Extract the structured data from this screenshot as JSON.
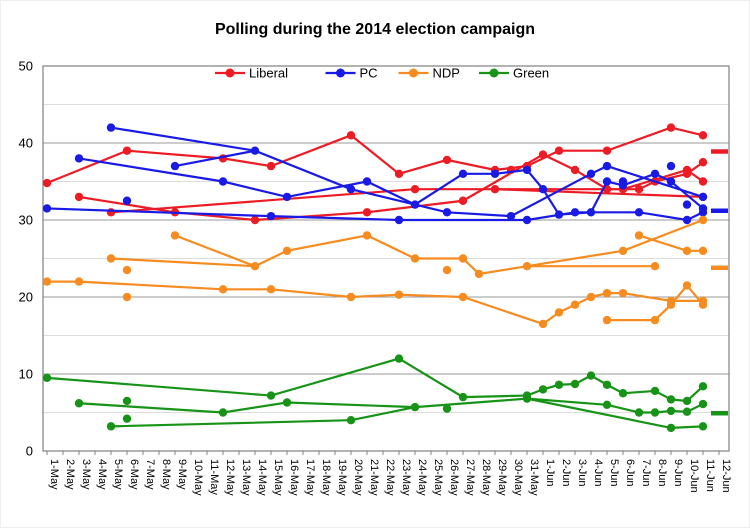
{
  "title": "Polling during the 2014 election campaign",
  "chart_data": {
    "type": "line",
    "title": "Polling during the 2014 election campaign",
    "xlabel": "",
    "ylabel": "",
    "ylim": [
      0,
      50
    ],
    "y_ticks": [
      0,
      10,
      20,
      30,
      40,
      50
    ],
    "grid": "on",
    "legend_position": "top-center",
    "x_labels": [
      "1-May",
      "2-May",
      "3-May",
      "4-May",
      "5-May",
      "6-May",
      "7-May",
      "8-May",
      "9-May",
      "10-May",
      "11-May",
      "12-May",
      "13-May",
      "14-May",
      "15-May",
      "16-May",
      "17-May",
      "18-May",
      "19-May",
      "20-May",
      "21-May",
      "22-May",
      "23-May",
      "24-May",
      "25-May",
      "26-May",
      "27-May",
      "28-May",
      "29-May",
      "30-May",
      "31-May",
      "1-Jun",
      "2-Jun",
      "3-Jun",
      "4-Jun",
      "5-Jun",
      "6-Jun",
      "7-Jun",
      "8-Jun",
      "9-Jun",
      "10-Jun",
      "11-Jun",
      "12-Jun"
    ],
    "legend": [
      "Liberal",
      "PC",
      "NDP",
      "Green"
    ],
    "series": [
      {
        "name": "Liberal",
        "color": "#ED1B24",
        "points": [
          [
            1,
            34.8
          ],
          [
            3,
            33
          ],
          [
            5,
            31
          ],
          [
            6,
            39
          ],
          [
            9,
            31
          ],
          [
            12,
            38
          ],
          [
            14,
            30
          ],
          [
            15,
            37
          ],
          [
            20,
            41
          ],
          [
            21,
            31
          ],
          [
            23,
            36
          ],
          [
            24,
            34
          ],
          [
            26,
            37.8
          ],
          [
            27,
            32.5
          ],
          [
            29,
            36.5
          ],
          [
            29,
            34
          ],
          [
            30,
            36.5
          ],
          [
            31,
            37
          ],
          [
            32,
            38.5
          ],
          [
            33,
            39
          ],
          [
            34,
            36.5
          ],
          [
            36,
            39
          ],
          [
            36,
            34
          ],
          [
            37,
            34
          ],
          [
            38,
            34
          ],
          [
            39,
            35
          ],
          [
            40,
            42
          ],
          [
            41,
            36.5
          ],
          [
            41,
            36
          ],
          [
            42,
            41
          ],
          [
            42,
            37.5
          ],
          [
            42,
            35
          ],
          [
            42,
            33
          ]
        ],
        "lines": [
          [
            [
              1,
              34.8
            ],
            [
              6,
              39
            ],
            [
              12,
              38
            ],
            [
              15,
              37
            ],
            [
              20,
              41
            ],
            [
              23,
              36
            ],
            [
              26,
              37.8
            ],
            [
              29,
              36.5
            ],
            [
              31,
              37
            ],
            [
              33,
              39
            ],
            [
              36,
              39
            ],
            [
              40,
              42
            ],
            [
              42,
              41
            ]
          ],
          [
            [
              3,
              33
            ],
            [
              9,
              31
            ],
            [
              14,
              30
            ],
            [
              21,
              31
            ],
            [
              27,
              32.5
            ],
            [
              32,
              38.5
            ],
            [
              34,
              36.5
            ],
            [
              36,
              34
            ],
            [
              38,
              34
            ],
            [
              39,
              35
            ],
            [
              41,
              36
            ],
            [
              42,
              37.5
            ]
          ],
          [
            [
              5,
              31
            ],
            [
              24,
              34
            ],
            [
              29,
              34
            ],
            [
              37,
              34
            ],
            [
              41,
              36.5
            ],
            [
              42,
              35
            ]
          ],
          [
            [
              29,
              34
            ],
            [
              42,
              33
            ]
          ]
        ],
        "result": 38.9
      },
      {
        "name": "PC",
        "color": "#1A1AE6",
        "points": [
          [
            1,
            31.5
          ],
          [
            3,
            38
          ],
          [
            5,
            42
          ],
          [
            6,
            32.5
          ],
          [
            9,
            37
          ],
          [
            12,
            35
          ],
          [
            14,
            39
          ],
          [
            15,
            30.5
          ],
          [
            16,
            33
          ],
          [
            20,
            34
          ],
          [
            21,
            35
          ],
          [
            23,
            30
          ],
          [
            24,
            32
          ],
          [
            26,
            31
          ],
          [
            27,
            36
          ],
          [
            29,
            36
          ],
          [
            30,
            30.5
          ],
          [
            31,
            36.5
          ],
          [
            31,
            30
          ],
          [
            32,
            34
          ],
          [
            33,
            30.7
          ],
          [
            34,
            31
          ],
          [
            35,
            36
          ],
          [
            35,
            31
          ],
          [
            36,
            37
          ],
          [
            36,
            35
          ],
          [
            37,
            35
          ],
          [
            37,
            34.5
          ],
          [
            38,
            31
          ],
          [
            39,
            36
          ],
          [
            40,
            37
          ],
          [
            40,
            35
          ],
          [
            41,
            32
          ],
          [
            41,
            30
          ],
          [
            42,
            33
          ],
          [
            42,
            31.5
          ],
          [
            42,
            31
          ]
        ],
        "lines": [
          [
            [
              1,
              31.5
            ],
            [
              15,
              30.5
            ],
            [
              23,
              30
            ],
            [
              31,
              30
            ],
            [
              34,
              31
            ],
            [
              38,
              31
            ],
            [
              41,
              30
            ],
            [
              42,
              31
            ]
          ],
          [
            [
              3,
              38
            ],
            [
              12,
              35
            ],
            [
              16,
              33
            ],
            [
              21,
              35
            ],
            [
              24,
              32
            ],
            [
              27,
              36
            ],
            [
              29,
              36
            ],
            [
              31,
              36.5
            ],
            [
              32,
              34
            ],
            [
              33,
              30.7
            ],
            [
              35,
              31
            ],
            [
              36,
              35
            ],
            [
              37,
              34.5
            ],
            [
              39,
              36
            ],
            [
              40,
              35
            ],
            [
              42,
              31.5
            ]
          ],
          [
            [
              5,
              42
            ],
            [
              14,
              39
            ],
            [
              20,
              34
            ],
            [
              26,
              31
            ],
            [
              30,
              30.5
            ],
            [
              35,
              36
            ],
            [
              36,
              37
            ],
            [
              42,
              33
            ]
          ],
          [
            [
              9,
              37
            ],
            [
              14,
              39
            ]
          ]
        ],
        "result": 31.2
      },
      {
        "name": "NDP",
        "color": "#F68B1F",
        "points": [
          [
            1,
            22
          ],
          [
            3,
            22
          ],
          [
            5,
            25
          ],
          [
            6,
            23.5
          ],
          [
            6,
            20
          ],
          [
            9,
            28
          ],
          [
            12,
            21
          ],
          [
            14,
            24
          ],
          [
            15,
            21
          ],
          [
            16,
            26
          ],
          [
            20,
            20
          ],
          [
            21,
            28
          ],
          [
            23,
            20.3
          ],
          [
            24,
            25
          ],
          [
            26,
            23.5
          ],
          [
            27,
            25
          ],
          [
            27,
            20
          ],
          [
            28,
            23
          ],
          [
            31,
            24
          ],
          [
            32,
            16.5
          ],
          [
            33,
            18
          ],
          [
            34,
            19
          ],
          [
            35,
            20
          ],
          [
            36,
            20.5
          ],
          [
            36,
            17
          ],
          [
            37,
            26
          ],
          [
            37,
            20.5
          ],
          [
            38,
            28
          ],
          [
            39,
            24
          ],
          [
            39,
            17
          ],
          [
            40,
            19.5
          ],
          [
            40,
            19
          ],
          [
            41,
            26
          ],
          [
            41,
            21.5
          ],
          [
            42,
            30
          ],
          [
            42,
            26
          ],
          [
            42,
            19.5
          ],
          [
            42,
            19
          ]
        ],
        "lines": [
          [
            [
              1,
              22
            ],
            [
              3,
              22
            ],
            [
              12,
              21
            ],
            [
              15,
              21
            ],
            [
              20,
              20
            ],
            [
              23,
              20.3
            ],
            [
              27,
              20
            ],
            [
              32,
              16.5
            ],
            [
              33,
              18
            ],
            [
              34,
              19
            ],
            [
              35,
              20
            ],
            [
              36,
              20.5
            ],
            [
              37,
              20.5
            ],
            [
              40,
              19.5
            ],
            [
              42,
              19.5
            ]
          ],
          [
            [
              5,
              25
            ],
            [
              14,
              24
            ],
            [
              16,
              26
            ],
            [
              21,
              28
            ],
            [
              24,
              25
            ],
            [
              27,
              25
            ],
            [
              28,
              23
            ],
            [
              31,
              24
            ],
            [
              37,
              26
            ],
            [
              42,
              30
            ]
          ],
          [
            [
              9,
              28
            ],
            [
              14,
              24
            ]
          ],
          [
            [
              31,
              24
            ],
            [
              39,
              24
            ]
          ],
          [
            [
              36,
              17
            ],
            [
              39,
              17
            ],
            [
              40,
              19
            ],
            [
              41,
              21.5
            ],
            [
              42,
              19
            ]
          ],
          [
            [
              38,
              28
            ],
            [
              41,
              26
            ],
            [
              42,
              26
            ]
          ]
        ],
        "result": 23.8
      },
      {
        "name": "Green",
        "color": "#179417",
        "points": [
          [
            1,
            9.5
          ],
          [
            3,
            6.2
          ],
          [
            5,
            3.2
          ],
          [
            6,
            6.5
          ],
          [
            6,
            4.2
          ],
          [
            12,
            5
          ],
          [
            15,
            7.2
          ],
          [
            16,
            6.3
          ],
          [
            20,
            4
          ],
          [
            23,
            12
          ],
          [
            24,
            5.7
          ],
          [
            26,
            5.5
          ],
          [
            27,
            7
          ],
          [
            31,
            7.2
          ],
          [
            31,
            6.8
          ],
          [
            32,
            8
          ],
          [
            33,
            8.6
          ],
          [
            34,
            8.7
          ],
          [
            35,
            9.8
          ],
          [
            36,
            8.6
          ],
          [
            36,
            6
          ],
          [
            37,
            7.5
          ],
          [
            38,
            5
          ],
          [
            39,
            7.8
          ],
          [
            39,
            5
          ],
          [
            40,
            6.7
          ],
          [
            40,
            5.2
          ],
          [
            40,
            3
          ],
          [
            41,
            6.5
          ],
          [
            41,
            5.1
          ],
          [
            42,
            8.4
          ],
          [
            42,
            6.1
          ],
          [
            42,
            3.2
          ]
        ],
        "lines": [
          [
            [
              1,
              9.5
            ],
            [
              15,
              7.2
            ],
            [
              23,
              12
            ],
            [
              27,
              7
            ],
            [
              31,
              7.2
            ],
            [
              32,
              8
            ],
            [
              33,
              8.6
            ],
            [
              34,
              8.7
            ],
            [
              35,
              9.8
            ],
            [
              36,
              8.6
            ],
            [
              37,
              7.5
            ],
            [
              39,
              7.8
            ],
            [
              40,
              6.7
            ],
            [
              41,
              6.5
            ],
            [
              42,
              8.4
            ]
          ],
          [
            [
              3,
              6.2
            ],
            [
              12,
              5
            ],
            [
              16,
              6.3
            ],
            [
              24,
              5.7
            ],
            [
              31,
              6.8
            ],
            [
              36,
              6
            ],
            [
              38,
              5
            ],
            [
              39,
              5
            ],
            [
              40,
              5.2
            ],
            [
              41,
              5.1
            ],
            [
              42,
              6.1
            ]
          ],
          [
            [
              5,
              3.2
            ],
            [
              20,
              4
            ],
            [
              24,
              5.7
            ]
          ],
          [
            [
              31,
              6.8
            ],
            [
              40,
              3
            ],
            [
              42,
              3.2
            ]
          ]
        ],
        "result": 4.9
      }
    ]
  }
}
